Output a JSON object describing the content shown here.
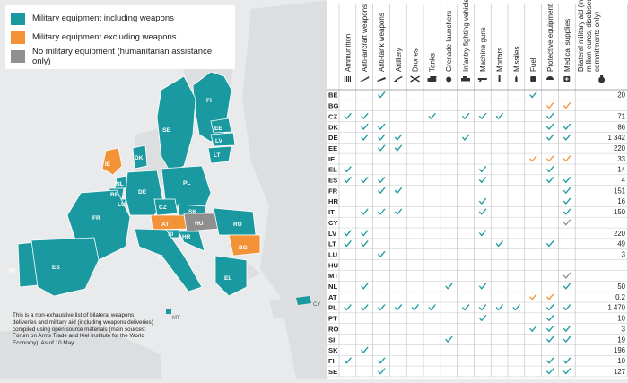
{
  "legend": [
    {
      "label": "Military equipment including weapons",
      "color": "#1a9aa0"
    },
    {
      "label": "Military equipment excluding weapons",
      "color": "#f39237"
    },
    {
      "label": "No military equipment (humanitarian assistance only)",
      "color": "#8f8f8f"
    }
  ],
  "note": "This is a non-exhaustive list of bilateral weapons deliveries and military aid (including weapons deliveries) compiled using open source materials (main sources: Forum on Arms Trade and Kiel Institute for the World Economy). As of 10 May.",
  "map_labels": [
    "FI",
    "SE",
    "EE",
    "LV",
    "LT",
    "DK",
    "IE",
    "NL",
    "BE",
    "LU",
    "DE",
    "PL",
    "CZ",
    "SK",
    "FR",
    "AT",
    "HU",
    "RO",
    "SI",
    "HR",
    "BG",
    "IT",
    "PT",
    "ES",
    "EL",
    "MT",
    "CY"
  ],
  "columns": [
    "Ammunition",
    "Anti-aircraft weapons",
    "Anti-tank weapons",
    "Artillery",
    "Drones",
    "Tanks",
    "Grenade launchers",
    "Infantry fighting vehicles",
    "Machine guns",
    "Mortars",
    "Missiles",
    "Fuel",
    "Protective equipment",
    "Medical supplies",
    "Bilateral military aid (in million euros; disclosed commitments only)"
  ],
  "column_icons": [
    "ammo-icon",
    "anti-aircraft-icon",
    "anti-tank-icon",
    "artillery-icon",
    "drone-icon",
    "tank-icon",
    "grenade-icon",
    "ifv-icon",
    "machine-gun-icon",
    "mortar-icon",
    "missile-icon",
    "fuel-icon",
    "helmet-icon",
    "medical-icon",
    "money-bag-icon"
  ],
  "rows": [
    {
      "code": "BE",
      "aid": "20",
      "cells": [
        0,
        0,
        1,
        0,
        0,
        0,
        0,
        0,
        0,
        0,
        0,
        1,
        0,
        0
      ]
    },
    {
      "code": "BG",
      "aid": "",
      "cells": [
        0,
        0,
        0,
        0,
        0,
        0,
        0,
        0,
        0,
        0,
        0,
        0,
        2,
        2
      ]
    },
    {
      "code": "CZ",
      "aid": "71",
      "cells": [
        1,
        1,
        0,
        0,
        0,
        1,
        0,
        1,
        1,
        1,
        0,
        0,
        1,
        0
      ]
    },
    {
      "code": "DK",
      "aid": "86",
      "cells": [
        0,
        1,
        1,
        0,
        0,
        0,
        0,
        0,
        0,
        0,
        0,
        0,
        1,
        1
      ]
    },
    {
      "code": "DE",
      "aid": "1 342",
      "cells": [
        0,
        1,
        1,
        1,
        0,
        0,
        0,
        1,
        0,
        0,
        0,
        0,
        1,
        1
      ]
    },
    {
      "code": "EE",
      "aid": "220",
      "cells": [
        0,
        0,
        1,
        1,
        0,
        0,
        0,
        0,
        0,
        0,
        0,
        0,
        0,
        0
      ]
    },
    {
      "code": "IE",
      "aid": "33",
      "cells": [
        0,
        0,
        0,
        0,
        0,
        0,
        0,
        0,
        0,
        0,
        0,
        2,
        2,
        2
      ]
    },
    {
      "code": "EL",
      "aid": "14",
      "cells": [
        1,
        0,
        0,
        0,
        0,
        0,
        0,
        0,
        1,
        0,
        0,
        0,
        1,
        0
      ]
    },
    {
      "code": "ES",
      "aid": "4",
      "cells": [
        1,
        1,
        1,
        0,
        0,
        0,
        0,
        0,
        1,
        0,
        0,
        0,
        1,
        1
      ]
    },
    {
      "code": "FR",
      "aid": "151",
      "cells": [
        0,
        0,
        1,
        1,
        0,
        0,
        0,
        0,
        0,
        0,
        0,
        0,
        0,
        1
      ]
    },
    {
      "code": "HR",
      "aid": "16",
      "cells": [
        0,
        0,
        0,
        0,
        0,
        0,
        0,
        0,
        1,
        0,
        0,
        0,
        0,
        1
      ]
    },
    {
      "code": "IT",
      "aid": "150",
      "cells": [
        0,
        1,
        1,
        1,
        0,
        0,
        0,
        0,
        1,
        0,
        0,
        0,
        0,
        1
      ]
    },
    {
      "code": "CY",
      "aid": "",
      "cells": [
        0,
        0,
        0,
        0,
        0,
        0,
        0,
        0,
        0,
        0,
        0,
        0,
        0,
        3
      ]
    },
    {
      "code": "LV",
      "aid": "220",
      "cells": [
        1,
        1,
        0,
        0,
        0,
        0,
        0,
        0,
        1,
        0,
        0,
        0,
        0,
        0
      ]
    },
    {
      "code": "LT",
      "aid": "49",
      "cells": [
        1,
        1,
        0,
        0,
        0,
        0,
        0,
        0,
        0,
        1,
        0,
        0,
        1,
        0
      ]
    },
    {
      "code": "LU",
      "aid": "3",
      "cells": [
        0,
        0,
        1,
        0,
        0,
        0,
        0,
        0,
        0,
        0,
        0,
        0,
        0,
        0
      ]
    },
    {
      "code": "HU",
      "aid": "",
      "cells": [
        0,
        0,
        0,
        0,
        0,
        0,
        0,
        0,
        0,
        0,
        0,
        0,
        0,
        0
      ]
    },
    {
      "code": "MT",
      "aid": "",
      "cells": [
        0,
        0,
        0,
        0,
        0,
        0,
        0,
        0,
        0,
        0,
        0,
        0,
        0,
        3
      ]
    },
    {
      "code": "NL",
      "aid": "50",
      "cells": [
        0,
        1,
        0,
        0,
        0,
        0,
        1,
        0,
        1,
        0,
        0,
        0,
        0,
        1
      ]
    },
    {
      "code": "AT",
      "aid": "0.2",
      "cells": [
        0,
        0,
        0,
        0,
        0,
        0,
        0,
        0,
        0,
        0,
        0,
        2,
        2,
        0
      ]
    },
    {
      "code": "PL",
      "aid": "1 470",
      "cells": [
        1,
        1,
        1,
        1,
        1,
        1,
        0,
        1,
        1,
        1,
        1,
        0,
        1,
        1
      ]
    },
    {
      "code": "PT",
      "aid": "10",
      "cells": [
        0,
        0,
        0,
        0,
        0,
        0,
        0,
        0,
        1,
        0,
        0,
        0,
        1,
        0
      ]
    },
    {
      "code": "RO",
      "aid": "3",
      "cells": [
        0,
        0,
        0,
        0,
        0,
        0,
        0,
        0,
        0,
        0,
        0,
        1,
        1,
        1
      ]
    },
    {
      "code": "SI",
      "aid": "19",
      "cells": [
        0,
        0,
        0,
        0,
        0,
        0,
        1,
        0,
        0,
        0,
        0,
        0,
        1,
        1
      ]
    },
    {
      "code": "SK",
      "aid": "196",
      "cells": [
        0,
        1,
        0,
        0,
        0,
        0,
        0,
        0,
        0,
        0,
        0,
        0,
        0,
        0
      ]
    },
    {
      "code": "FI",
      "aid": "10",
      "cells": [
        1,
        0,
        1,
        0,
        0,
        0,
        0,
        0,
        0,
        0,
        0,
        0,
        1,
        1
      ]
    },
    {
      "code": "SE",
      "aid": "127",
      "cells": [
        0,
        0,
        1,
        0,
        0,
        0,
        0,
        0,
        0,
        0,
        0,
        0,
        1,
        1
      ]
    }
  ],
  "colors": {
    "weapons": "#1a9aa0",
    "no_weapons": "#f39237",
    "humanitarian": "#8f8f8f",
    "land": "#e2e4e6",
    "sea": "#e9eaeb"
  }
}
